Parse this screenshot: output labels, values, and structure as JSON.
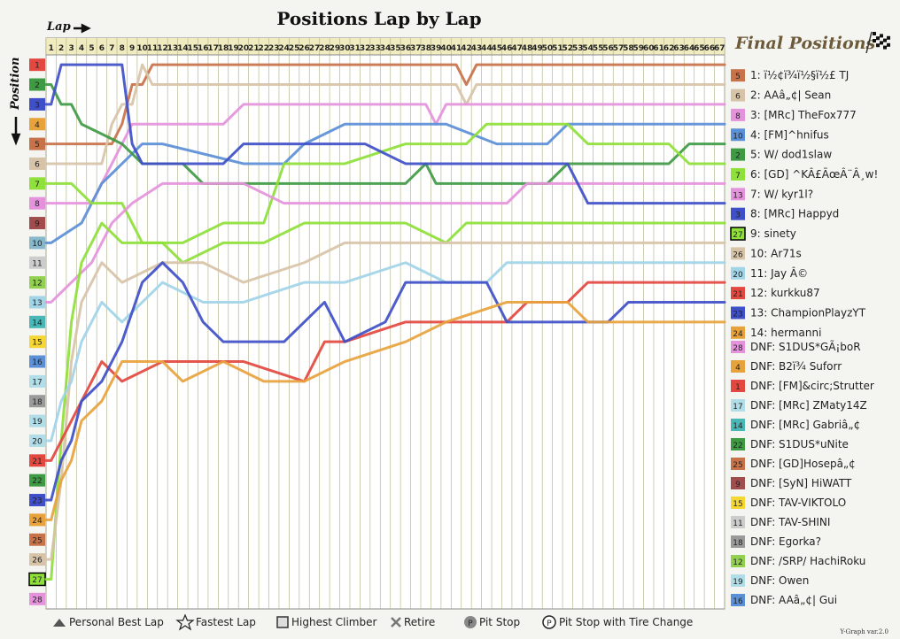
{
  "chart_data": {
    "type": "line",
    "title": "Positions Lap by Lap",
    "xlabel": "Lap",
    "ylabel": "Position",
    "final_title": "Final Positions",
    "version": "Y-Graph var.2.0",
    "laps": [
      1,
      2,
      3,
      4,
      5,
      6,
      7,
      8,
      9,
      10,
      11,
      12,
      13,
      14,
      15,
      16,
      17,
      18,
      19,
      20,
      21,
      22,
      23,
      24,
      25,
      26,
      27,
      28,
      29,
      30,
      31,
      32,
      33,
      34,
      35,
      36,
      37,
      38,
      39,
      40,
      41,
      42,
      43,
      44,
      45,
      46,
      47,
      48,
      49,
      50,
      51,
      52,
      53,
      54,
      55,
      56,
      57,
      58,
      59,
      60,
      61,
      62,
      63,
      64,
      65,
      66,
      67
    ],
    "positions": [
      1,
      2,
      3,
      4,
      5,
      6,
      7,
      8,
      9,
      10,
      11,
      12,
      13,
      14,
      15,
      16,
      17,
      18,
      19,
      20,
      21,
      22,
      23,
      24,
      25,
      26,
      27,
      28
    ],
    "grid_labels": [
      "1",
      "2",
      "3",
      "4",
      "5",
      "6",
      "7",
      "8",
      "9",
      "10",
      "11",
      "12",
      "13",
      "14",
      "15",
      "16",
      "17",
      "18",
      "19",
      "20",
      "21",
      "22",
      "23",
      "24",
      "25",
      "26",
      "27",
      "28"
    ],
    "grid_colors": [
      "#e2483f",
      "#3f9a44",
      "#3f4fc8",
      "#e8a23c",
      "#c8724a",
      "#d7c3a8",
      "#8fe03a",
      "#e592dc",
      "#a24d4d",
      "#87b7cb",
      "#cccccc",
      "#92d14f",
      "#a2d4e8",
      "#4ab7b7",
      "#f5d632",
      "#5b8fd6",
      "#b0dde8",
      "#9a9a9a",
      "#b0dde8",
      "#b0dde8",
      "#e2483f",
      "#3f9a44",
      "#3f4fc8",
      "#e8a23c",
      "#c8724a",
      "#d7c3a8",
      "#8fe03a",
      "#e592dc"
    ],
    "grid_highlight": [
      27
    ],
    "series": [
      {
        "name": "ï½¢ï¾ï½§ï½£ TJ",
        "color": "#c8724a",
        "badge": "5",
        "final": 1,
        "finish": "1: ï½¢ï¾ï½§ï½£ TJ",
        "points": [
          [
            1,
            5
          ],
          [
            2,
            5
          ],
          [
            3,
            5
          ],
          [
            4,
            5
          ],
          [
            5,
            5
          ],
          [
            6,
            5
          ],
          [
            7,
            5
          ],
          [
            8,
            4
          ],
          [
            9,
            2
          ],
          [
            10,
            2
          ],
          [
            11,
            1
          ],
          [
            12,
            1
          ],
          [
            20,
            1
          ],
          [
            40,
            1
          ],
          [
            41,
            1
          ],
          [
            42,
            2
          ],
          [
            43,
            1
          ],
          [
            67,
            1
          ]
        ]
      },
      {
        "name": "AAâ„¢| Sean",
        "color": "#d7c3a8",
        "badge": "6",
        "final": 2,
        "finish": "2: AAâ„¢| Sean",
        "points": [
          [
            1,
            6
          ],
          [
            2,
            6
          ],
          [
            3,
            6
          ],
          [
            4,
            6
          ],
          [
            5,
            6
          ],
          [
            6,
            6
          ],
          [
            7,
            4
          ],
          [
            8,
            3
          ],
          [
            9,
            3
          ],
          [
            10,
            1
          ],
          [
            11,
            2
          ],
          [
            12,
            2
          ],
          [
            30,
            2
          ],
          [
            41,
            2
          ],
          [
            42,
            3
          ],
          [
            43,
            2
          ],
          [
            67,
            2
          ]
        ]
      },
      {
        "name": "[MRc] TheFox777",
        "color": "#e592dc",
        "badge": "8",
        "final": 3,
        "finish": "3: [MRc] TheFox777",
        "points": [
          [
            1,
            8
          ],
          [
            5,
            8
          ],
          [
            7,
            6
          ],
          [
            9,
            4
          ],
          [
            11,
            4
          ],
          [
            18,
            4
          ],
          [
            20,
            3
          ],
          [
            24,
            3
          ],
          [
            26,
            3
          ],
          [
            38,
            3
          ],
          [
            39,
            4
          ],
          [
            40,
            3
          ],
          [
            67,
            3
          ]
        ]
      },
      {
        "name": "[FM]^hnifus",
        "color": "#5b8fd6",
        "badge": "10",
        "final": 4,
        "finish": "4: [FM]^hnifus",
        "points": [
          [
            1,
            10
          ],
          [
            4,
            9
          ],
          [
            6,
            7
          ],
          [
            8,
            6
          ],
          [
            10,
            5
          ],
          [
            12,
            5
          ],
          [
            20,
            6
          ],
          [
            24,
            6
          ],
          [
            26,
            5
          ],
          [
            30,
            4
          ],
          [
            40,
            4
          ],
          [
            45,
            5
          ],
          [
            50,
            5
          ],
          [
            52,
            4
          ],
          [
            67,
            4
          ]
        ]
      },
      {
        "name": "W/ dod1slaw",
        "color": "#3f9a44",
        "badge": "2",
        "final": 5,
        "finish": "5: W/ dod1slaw",
        "points": [
          [
            1,
            2
          ],
          [
            2,
            3
          ],
          [
            3,
            3
          ],
          [
            4,
            4
          ],
          [
            8,
            5
          ],
          [
            10,
            6
          ],
          [
            14,
            6
          ],
          [
            16,
            7
          ],
          [
            20,
            7
          ],
          [
            36,
            7
          ],
          [
            38,
            6
          ],
          [
            39,
            7
          ],
          [
            40,
            7
          ],
          [
            50,
            7
          ],
          [
            52,
            6
          ],
          [
            62,
            6
          ],
          [
            64,
            5
          ],
          [
            67,
            5
          ]
        ]
      },
      {
        "name": "[GD] ^KÂ£ÃœÂ¨Â¸w!",
        "color": "#8fe03a",
        "badge": "7",
        "final": 6,
        "finish": "6: [GD] ^KÂ£ÃœÂ¨Â¸w!",
        "points": [
          [
            1,
            7
          ],
          [
            3,
            7
          ],
          [
            5,
            8
          ],
          [
            8,
            8
          ],
          [
            10,
            10
          ],
          [
            14,
            10
          ],
          [
            18,
            9
          ],
          [
            22,
            9
          ],
          [
            24,
            6
          ],
          [
            30,
            6
          ],
          [
            36,
            5
          ],
          [
            40,
            5
          ],
          [
            42,
            5
          ],
          [
            44,
            4
          ],
          [
            52,
            4
          ],
          [
            54,
            5
          ],
          [
            62,
            5
          ],
          [
            64,
            6
          ],
          [
            67,
            6
          ]
        ]
      },
      {
        "name": "W/ kyr1l?",
        "color": "#e592dc",
        "badge": "13",
        "final": 7,
        "finish": "7: W/ kyr1l?",
        "points": [
          [
            1,
            13
          ],
          [
            3,
            12
          ],
          [
            5,
            11
          ],
          [
            7,
            9
          ],
          [
            9,
            8
          ],
          [
            12,
            7
          ],
          [
            20,
            7
          ],
          [
            24,
            8
          ],
          [
            30,
            8
          ],
          [
            38,
            8
          ],
          [
            40,
            8
          ],
          [
            46,
            8
          ],
          [
            48,
            7
          ],
          [
            67,
            7
          ]
        ]
      },
      {
        "name": "[MRc] Happyd",
        "color": "#3f4fc8",
        "badge": "3",
        "final": 8,
        "finish": "8: [MRc] Happyd",
        "points": [
          [
            1,
            3
          ],
          [
            2,
            1
          ],
          [
            7,
            1
          ],
          [
            8,
            1
          ],
          [
            9,
            5
          ],
          [
            10,
            6
          ],
          [
            14,
            6
          ],
          [
            18,
            6
          ],
          [
            20,
            5
          ],
          [
            26,
            5
          ],
          [
            30,
            5
          ],
          [
            32,
            5
          ],
          [
            36,
            6
          ],
          [
            40,
            6
          ],
          [
            52,
            6
          ],
          [
            54,
            8
          ],
          [
            67,
            8
          ]
        ]
      },
      {
        "name": "sinety",
        "color": "#8fe03a",
        "badge": "27",
        "final": 9,
        "finish": "9: sinety",
        "points": [
          [
            1,
            27
          ],
          [
            2,
            20
          ],
          [
            3,
            14
          ],
          [
            4,
            11
          ],
          [
            6,
            9
          ],
          [
            8,
            10
          ],
          [
            12,
            10
          ],
          [
            14,
            11
          ],
          [
            18,
            10
          ],
          [
            22,
            10
          ],
          [
            26,
            9
          ],
          [
            30,
            9
          ],
          [
            36,
            9
          ],
          [
            40,
            10
          ],
          [
            42,
            9
          ],
          [
            67,
            9
          ]
        ]
      },
      {
        "name": "Ar71s",
        "color": "#d7c3a8",
        "badge": "26",
        "final": 10,
        "finish": "10: Ar71s",
        "points": [
          [
            1,
            26
          ],
          [
            2,
            22
          ],
          [
            3,
            16
          ],
          [
            4,
            13
          ],
          [
            6,
            11
          ],
          [
            8,
            12
          ],
          [
            12,
            11
          ],
          [
            16,
            11
          ],
          [
            20,
            12
          ],
          [
            26,
            11
          ],
          [
            30,
            10
          ],
          [
            36,
            10
          ],
          [
            40,
            10
          ],
          [
            67,
            10
          ]
        ]
      },
      {
        "name": "Jay Â©",
        "color": "#a2d4e8",
        "badge": "20",
        "final": 11,
        "finish": "11: Jay Â©",
        "points": [
          [
            1,
            20
          ],
          [
            2,
            18
          ],
          [
            3,
            17
          ],
          [
            4,
            15
          ],
          [
            6,
            13
          ],
          [
            8,
            14
          ],
          [
            12,
            12
          ],
          [
            16,
            13
          ],
          [
            20,
            13
          ],
          [
            26,
            12
          ],
          [
            30,
            12
          ],
          [
            36,
            11
          ],
          [
            40,
            12
          ],
          [
            44,
            12
          ],
          [
            46,
            11
          ],
          [
            52,
            11
          ],
          [
            54,
            11
          ],
          [
            67,
            11
          ]
        ]
      },
      {
        "name": "kurkku87",
        "color": "#e2483f",
        "badge": "21",
        "final": 12,
        "finish": "12: kurkku87",
        "points": [
          [
            1,
            21
          ],
          [
            2,
            20
          ],
          [
            3,
            19
          ],
          [
            4,
            18
          ],
          [
            6,
            16
          ],
          [
            8,
            17
          ],
          [
            12,
            16
          ],
          [
            16,
            16
          ],
          [
            20,
            16
          ],
          [
            26,
            17
          ],
          [
            28,
            15
          ],
          [
            30,
            15
          ],
          [
            36,
            14
          ],
          [
            40,
            14
          ],
          [
            46,
            14
          ],
          [
            48,
            13
          ],
          [
            52,
            13
          ],
          [
            54,
            12
          ],
          [
            67,
            12
          ]
        ]
      },
      {
        "name": "ChampionPlayzYT",
        "color": "#3f4fc8",
        "badge": "23",
        "final": 13,
        "finish": "13: ChampionPlayzYT",
        "points": [
          [
            1,
            23
          ],
          [
            2,
            21
          ],
          [
            3,
            20
          ],
          [
            4,
            18
          ],
          [
            6,
            17
          ],
          [
            8,
            15
          ],
          [
            10,
            12
          ],
          [
            12,
            11
          ],
          [
            14,
            12
          ],
          [
            16,
            14
          ],
          [
            18,
            15
          ],
          [
            20,
            15
          ],
          [
            24,
            15
          ],
          [
            26,
            14
          ],
          [
            28,
            13
          ],
          [
            30,
            15
          ],
          [
            34,
            14
          ],
          [
            36,
            12
          ],
          [
            40,
            12
          ],
          [
            44,
            12
          ],
          [
            46,
            14
          ],
          [
            56,
            14
          ],
          [
            58,
            13
          ],
          [
            67,
            13
          ]
        ]
      },
      {
        "name": "hermanni",
        "color": "#e8a23c",
        "badge": "24",
        "final": 14,
        "finish": "14: hermanni",
        "points": [
          [
            1,
            24
          ],
          [
            2,
            22
          ],
          [
            3,
            21
          ],
          [
            4,
            19
          ],
          [
            6,
            18
          ],
          [
            8,
            16
          ],
          [
            12,
            16
          ],
          [
            14,
            17
          ],
          [
            18,
            16
          ],
          [
            22,
            17
          ],
          [
            26,
            17
          ],
          [
            30,
            16
          ],
          [
            36,
            15
          ],
          [
            40,
            14
          ],
          [
            46,
            13
          ],
          [
            52,
            13
          ],
          [
            54,
            14
          ],
          [
            67,
            14
          ]
        ]
      }
    ],
    "dnf": [
      {
        "badge": "28",
        "color": "#e592dc",
        "label": "DNF: S1DUS*GÃ¡boR"
      },
      {
        "badge": "4",
        "color": "#e8a23c",
        "label": "DNF: B2ï¾ Suforr"
      },
      {
        "badge": "1",
        "color": "#e2483f",
        "label": "DNF: [FM]&circ;Strutter"
      },
      {
        "badge": "17",
        "color": "#b0dde8",
        "label": "DNF: [MRc] ZMaty14Z"
      },
      {
        "badge": "14",
        "color": "#4ab7b7",
        "label": "DNF: [MRc] Gabriâ„¢"
      },
      {
        "badge": "22",
        "color": "#3f9a44",
        "label": "DNF: S1DUS*uNite"
      },
      {
        "badge": "25",
        "color": "#c8724a",
        "label": "DNF: [GD]Hosepâ„¢"
      },
      {
        "badge": "9",
        "color": "#a24d4d",
        "label": "DNF: [SyN] HiWATT"
      },
      {
        "badge": "15",
        "color": "#f5d632",
        "label": "DNF: TAV-VIKTOLO"
      },
      {
        "badge": "11",
        "color": "#cccccc",
        "label": "DNF: TAV-SHINI"
      },
      {
        "badge": "18",
        "color": "#9a9a9a",
        "label": "DNF: Egorka?"
      },
      {
        "badge": "12",
        "color": "#92d14f",
        "label": "DNF: /SRP/ HachiRoku"
      },
      {
        "badge": "19",
        "color": "#b0dde8",
        "label": "DNF: Owen"
      },
      {
        "badge": "16",
        "color": "#5b8fd6",
        "label": "DNF: AAâ„¢| Gui"
      }
    ],
    "legend": {
      "personal_best": "Personal Best Lap",
      "fastest": "Fastest Lap",
      "highest_climber": "Highest Climber",
      "retire": "Retire",
      "pit_stop": "Pit Stop",
      "pit_tire": "Pit Stop with Tire Change"
    },
    "colors": {
      "grid": "#b8b892",
      "grid_bg": "#ffffff",
      "header_bg": "#f1ecc0",
      "accent_title": "#6d5a3a"
    }
  }
}
